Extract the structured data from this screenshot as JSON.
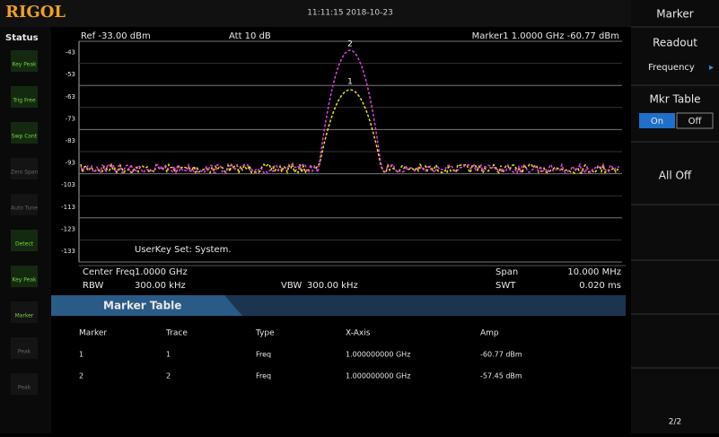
{
  "brand": "RIGOL",
  "datetime": "11:11:15 2018-10-23",
  "status": {
    "title": "Status",
    "items": [
      "Key Peak",
      "Trig Free",
      "Swp Cont",
      "Zero Span",
      "Auto Tune",
      "Detect",
      "Key Peak",
      "Marker",
      "Peak",
      "Peak"
    ]
  },
  "header": {
    "ref": "Ref -33.00 dBm",
    "att": "Att 10 dB",
    "marker": "Marker1 1.0000 GHz -60.77 dBm"
  },
  "yaxis": [
    "-43",
    "-53",
    "-63",
    "-73",
    "-83",
    "-93",
    "-103",
    "-113",
    "-123",
    "-133"
  ],
  "userkey": "UserKey Set: System.",
  "info": {
    "center_label": "Center Freq",
    "center": "1.0000 GHz",
    "rbw_label": "RBW",
    "rbw": "300.00 kHz",
    "vbw_label": "VBW",
    "vbw": "300.00 kHz",
    "span_label": "Span",
    "span": "10.000 MHz",
    "swt_label": "SWT",
    "swt": "0.020 ms"
  },
  "table": {
    "title": "Marker Table",
    "columns": [
      "Marker",
      "Trace",
      "Type",
      "X-Axis",
      "Amp"
    ],
    "rows": [
      [
        "1",
        "1",
        "Freq",
        "1.000000000 GHz",
        "-60.77 dBm"
      ],
      [
        "2",
        "2",
        "Freq",
        "1.000000000 GHz",
        "-57.45 dBm"
      ]
    ]
  },
  "markers": [
    "1",
    "2"
  ],
  "menu": {
    "title": "Marker",
    "readout": "Readout",
    "readout_value": "Frequency",
    "mkr_table": "Mkr Table",
    "on": "On",
    "off": "Off",
    "all_off": "All Off",
    "page": "2/2"
  }
}
